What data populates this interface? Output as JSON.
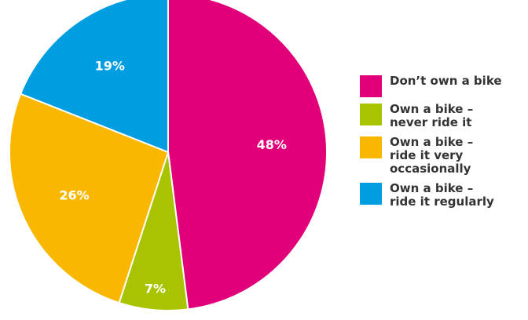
{
  "chart_data": {
    "type": "pie",
    "title": "",
    "slices": [
      {
        "label": "Don’t own a bike",
        "legend_text": "Don’t own a bike",
        "value": 48,
        "value_label": "48%",
        "color": "#e2007a"
      },
      {
        "label": "Own a bike – never ride it",
        "legend_text": "Own a bike –\nnever ride it",
        "value": 7,
        "value_label": "7%",
        "color": "#a8c300"
      },
      {
        "label": "Own a bike – ride it very occasionally",
        "legend_text": "Own a bike –\nride it very\noccasionally",
        "value": 26,
        "value_label": "26%",
        "color": "#f9b700"
      },
      {
        "label": "Own a bike – ride it regularly",
        "legend_text": "Own a bike –\nride it regularly",
        "value": 19,
        "value_label": "19%",
        "color": "#009de0"
      }
    ],
    "legend_position": "right",
    "start": "top",
    "direction": "clockwise"
  }
}
